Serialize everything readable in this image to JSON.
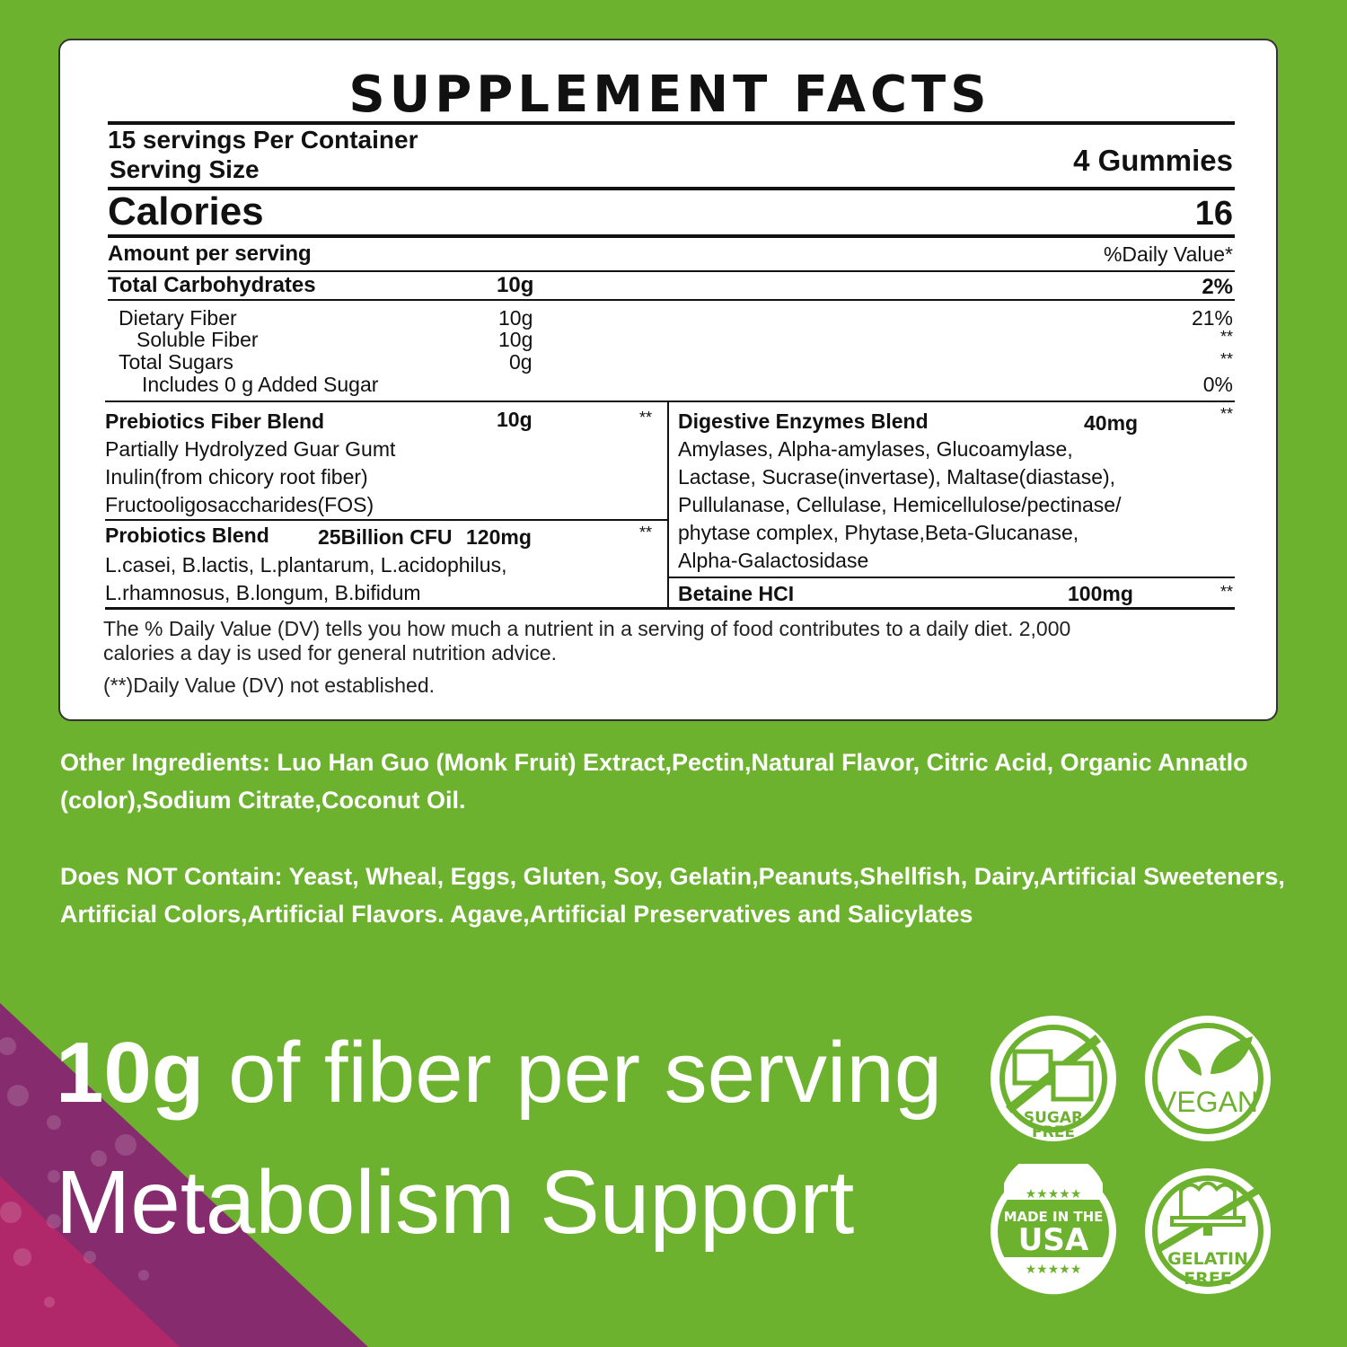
{
  "panel": {
    "title": "SUPPLEMENT FACTS",
    "servings_per_container": "15 servings Per Container",
    "serving_size_label": "Serving Size",
    "serving_size_value": "4 Gummies",
    "calories_label": "Calories",
    "calories_value": "16",
    "amount_per_serving": "Amount per serving",
    "daily_value_header": "%Daily Value*",
    "nutrients": [
      {
        "name": "Total Carbohydrates",
        "amount": "10g",
        "dv": "2%"
      },
      {
        "name": "Dietary Fiber",
        "amount": "10g",
        "dv": "21%"
      },
      {
        "name": "Soluble Fiber",
        "amount": "10g",
        "dv": "**"
      },
      {
        "name": "Total Sugars",
        "amount": "0g",
        "dv": "**"
      },
      {
        "name": "Includes 0 g Added Sugar",
        "amount": "",
        "dv": "0%"
      }
    ],
    "prebiotics": {
      "name": "Prebiotics Fiber Blend",
      "amount": "10g",
      "dv": "**",
      "lines": [
        "Partially Hydrolyzed Guar Gumt",
        "Inulin(from chicory root fiber)",
        "Fructooligosaccharides(FOS)"
      ]
    },
    "probiotics": {
      "name": "Probiotics Blend",
      "cfu": "25Billion CFU",
      "amount": "120mg",
      "dv": "**",
      "lines": [
        "L.casei, B.lactis, L.plantarum, L.acidophilus,",
        "L.rhamnosus, B.longum, B.bifidum"
      ]
    },
    "enzymes": {
      "name": "Digestive Enzymes Blend",
      "amount": "40mg",
      "dv": "**",
      "lines": [
        "Amylases, Alpha-amylases, Glucoamylase,",
        "Lactase, Sucrase(invertase), Maltase(diastase),",
        "Pullulanase, Cellulase, Hemicellulose/pectinase/",
        "phytase complex, Phytase,Beta-Glucanase,",
        "Alpha-Galactosidase"
      ]
    },
    "betaine": {
      "name": "Betaine HCI",
      "amount": "100mg",
      "dv": "**"
    },
    "footnote_1": "The % Daily Value (DV) tells you how much a nutrient in a serving of food contributes to a daily diet. 2,000",
    "footnote_2": "calories a day is used for general nutrition advice.",
    "footnote_3": "(**)Daily Value (DV) not established."
  },
  "other_ingredients": "Other Ingredients: Luo Han Guo (Monk Fruit) Extract,Pectin,Natural Flavor, Citric Acid, Organic Annatlo (color),Sodium Citrate,Coconut Oil.",
  "does_not_contain": "Does NOT Contain: Yeast, Wheal, Eggs, Gluten, Soy, Gelatin,Peanuts,Shellfish, Dairy,Artificial Sweeteners, Artificial Colors,Artificial Flavors. Agave,Artificial Preservatives and Salicylates",
  "headline": {
    "bold": "10g",
    "rest": " of fiber per serving",
    "line2": "Metabolism Support"
  },
  "badges": {
    "sugar_free": [
      "SUGAR",
      "FREE"
    ],
    "vegan": "VEGAN",
    "usa": [
      "MADE IN THE",
      "USA"
    ],
    "gelatin_free": [
      "GELATIN",
      "FREE"
    ]
  },
  "colors": {
    "background": "#6cb22e",
    "purple": "#862c6e",
    "magenta": "#b0286a",
    "panel": "#ffffff"
  }
}
